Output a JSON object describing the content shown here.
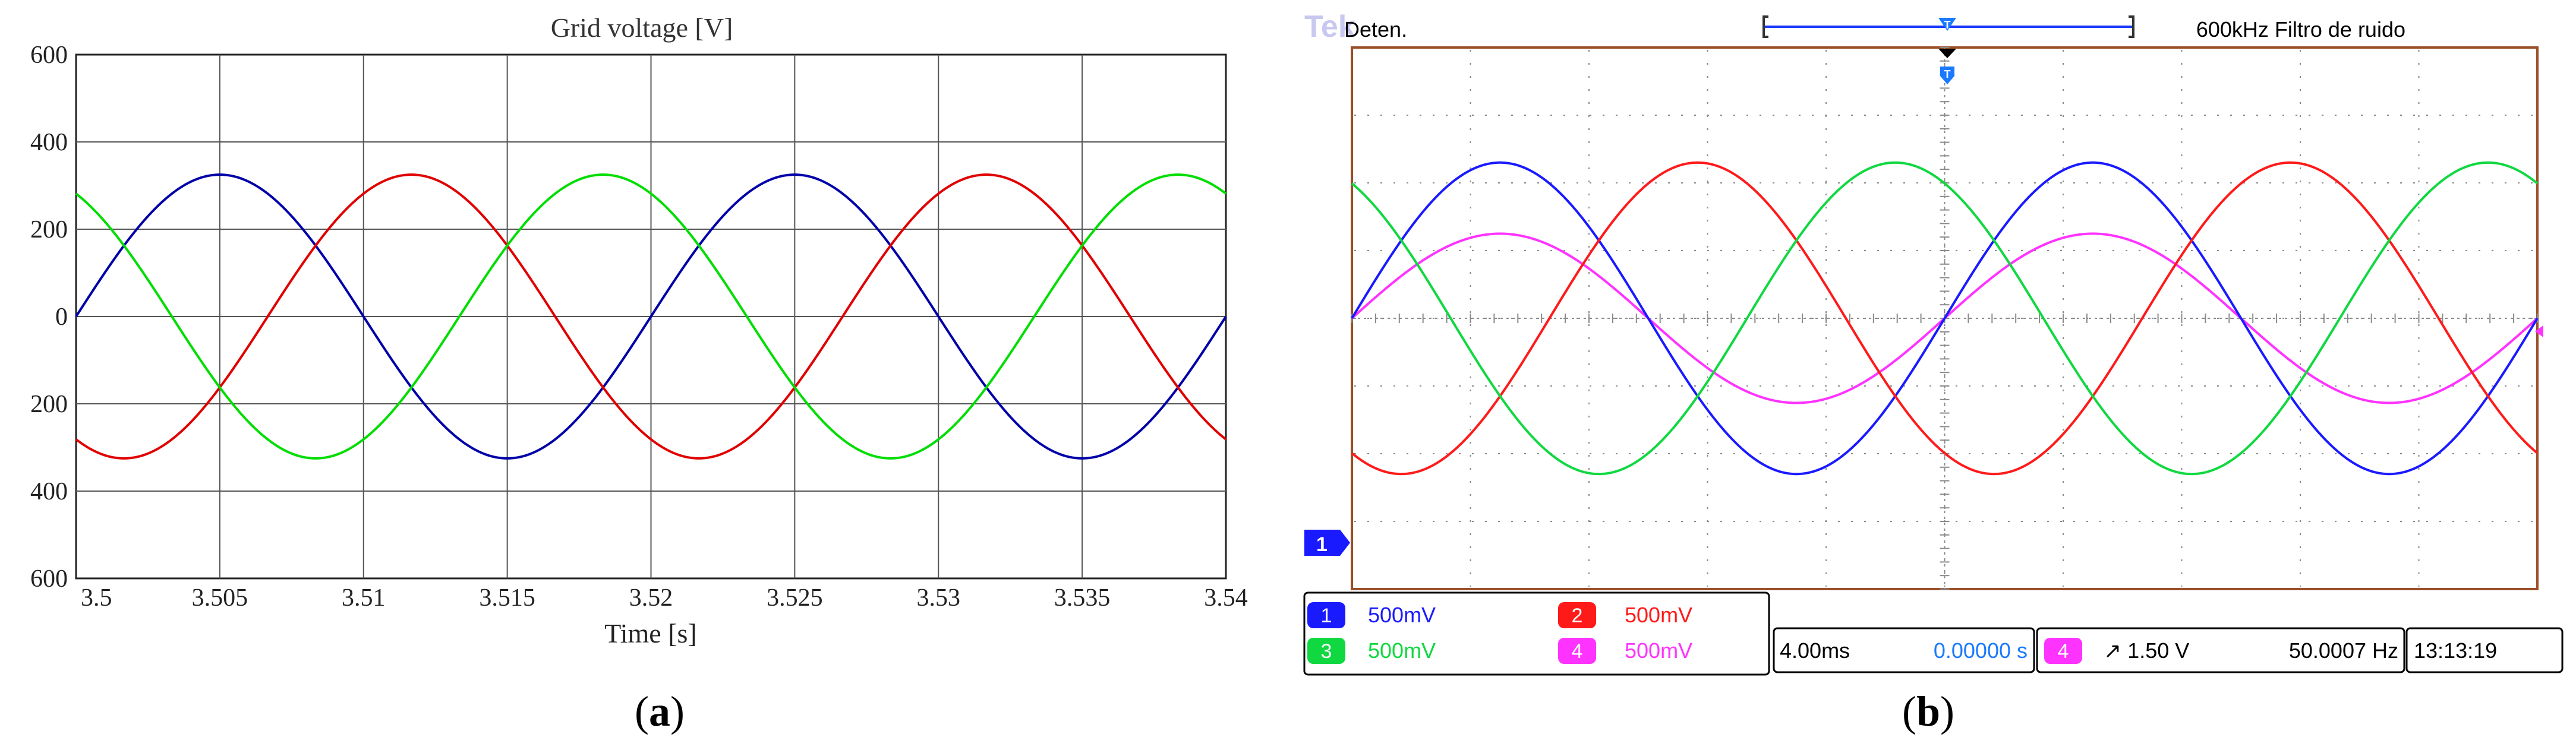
{
  "panel_a": {
    "caption_open": "(",
    "caption_letter": "a",
    "caption_close": ")",
    "title": "Grid voltage [V]",
    "xlabel": "Time [s]",
    "y_ticks": [
      "600",
      "400",
      "200",
      "0",
      "200",
      "400",
      "600"
    ],
    "x_ticks": [
      "3.5",
      "3.505",
      "3.51",
      "3.515",
      "3.52",
      "3.525",
      "3.53",
      "3.535",
      "3.54"
    ]
  },
  "panel_b": {
    "caption_open": "(",
    "caption_letter": "b",
    "caption_close": ")",
    "brand": "Tek",
    "status": "Deten.",
    "filter": "600kHz  Filtro de ruido",
    "ground_marker": "1",
    "channels": [
      {
        "num": "1",
        "scale": "500mV",
        "color": "#1a1aff"
      },
      {
        "num": "2",
        "scale": "500mV",
        "color": "#ff1a1a"
      },
      {
        "num": "3",
        "scale": "500mV",
        "color": "#10d840"
      },
      {
        "num": "4",
        "scale": "500mV",
        "color": "#ff33ff"
      }
    ],
    "timebase": "4.00ms",
    "trigger_pos": "0.00000 s",
    "trigger_ch": "4",
    "trigger_level": "↗ 1.50 V",
    "frequency": "50.0007 Hz",
    "clock": "13:13:19"
  },
  "chart_data": [
    {
      "type": "line",
      "title": "Grid voltage [V]",
      "xlabel": "Time [s]",
      "ylabel": "",
      "xlim": [
        3.5,
        3.54
      ],
      "ylim": [
        -600,
        600
      ],
      "grid": true,
      "series": [
        {
          "color": "#0000a8",
          "amplitude": 325,
          "frequency_hz": 50,
          "phase_deg": 0
        },
        {
          "color": "#e00000",
          "amplitude": 325,
          "frequency_hz": 50,
          "phase_deg": -120
        },
        {
          "color": "#00dd00",
          "amplitude": 325,
          "frequency_hz": 50,
          "phase_deg": 120
        }
      ]
    },
    {
      "type": "line",
      "title": "",
      "xlabel": "",
      "ylabel": "",
      "divisions": {
        "x": 10,
        "y": 8
      },
      "xlim_div": [
        -5,
        5
      ],
      "ylim_div": [
        -4,
        4
      ],
      "grid": true,
      "series": [
        {
          "color": "#1a1aff",
          "amplitude_div": 2.3,
          "period_div": 5,
          "phase_deg": 0,
          "offset_div": 0
        },
        {
          "color": "#ff1a1a",
          "amplitude_div": 2.3,
          "period_div": 5,
          "phase_deg": -120,
          "offset_div": 0
        },
        {
          "color": "#10d840",
          "amplitude_div": 2.3,
          "period_div": 5,
          "phase_deg": 120,
          "offset_div": 0
        },
        {
          "color": "#ff33ff",
          "amplitude_div": 1.25,
          "period_div": 5,
          "phase_deg": 0,
          "offset_div": 0
        }
      ]
    }
  ]
}
